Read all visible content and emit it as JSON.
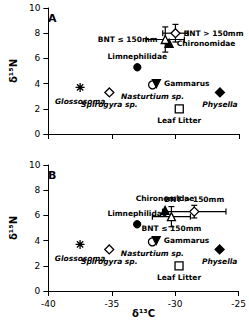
{
  "chart_data": [
    {
      "type": "scatter",
      "title": "A",
      "ylabel": "δ¹⁵N",
      "color": "#000000",
      "xlim": [
        -40,
        -25
      ],
      "xticks": [
        -40,
        -35,
        -30,
        -25
      ],
      "ylim": [
        0,
        10
      ],
      "yticks": [
        0,
        2,
        4,
        6,
        8,
        10
      ],
      "tick_labels": "y",
      "grid": false,
      "series": [
        {
          "name": "Glossosoma",
          "marker": "asterisk",
          "x": [
            -37.5
          ],
          "values": [
            3.7
          ]
        },
        {
          "name": "Spirogyra sp.",
          "marker": "diamond_open",
          "x": [
            -35.2
          ],
          "values": [
            3.3
          ]
        },
        {
          "name": "Limnephilidae",
          "marker": "circle",
          "x": [
            -33.0
          ],
          "values": [
            5.3
          ]
        },
        {
          "name": "Nasturtium sp.",
          "marker": "circle_open",
          "x": [
            -31.8
          ],
          "values": [
            3.9
          ]
        },
        {
          "name": "Gammarus",
          "marker": "triangle_down",
          "x": [
            -31.5
          ],
          "values": [
            4.0
          ]
        },
        {
          "name": "Leaf Litter",
          "marker": "square_open",
          "x": [
            -29.7
          ],
          "values": [
            2.0
          ]
        },
        {
          "name": "Physella",
          "marker": "diamond",
          "x": [
            -26.5
          ],
          "values": [
            3.3
          ]
        },
        {
          "name": "Chironomidae",
          "marker": "triangle",
          "x": [
            -30.5
          ],
          "values": [
            7.2
          ]
        },
        {
          "name": "BNT ≤ 150mm",
          "marker": "triangle_open",
          "x": [
            -30.8
          ],
          "values": [
            7.5
          ],
          "x_error": [
            1.5
          ],
          "y_error": [
            1.0
          ]
        },
        {
          "name": "BNT > 150mm",
          "marker": "diamond_open",
          "x": [
            -30.0
          ],
          "values": [
            8.0
          ],
          "x_error": [
            1.0
          ],
          "y_error": [
            0.7
          ]
        }
      ]
    },
    {
      "type": "scatter",
      "title": "B",
      "xlabel": "δ¹³C",
      "ylabel": "δ¹⁵N",
      "color": "#000000",
      "xlim": [
        -40,
        -25
      ],
      "xticks": [
        -40,
        -35,
        -30,
        -25
      ],
      "ylim": [
        0,
        10
      ],
      "yticks": [
        0,
        2,
        4,
        6,
        8,
        10
      ],
      "grid": false,
      "series": [
        {
          "name": "Glossosoma",
          "marker": "asterisk",
          "x": [
            -37.5
          ],
          "values": [
            3.7
          ]
        },
        {
          "name": "Spirogyra sp.",
          "marker": "diamond_open",
          "x": [
            -35.2
          ],
          "values": [
            3.3
          ]
        },
        {
          "name": "Limnephilidae",
          "marker": "circle",
          "x": [
            -33.0
          ],
          "values": [
            5.3
          ]
        },
        {
          "name": "Nasturtium sp.",
          "marker": "circle_open",
          "x": [
            -31.8
          ],
          "values": [
            3.9
          ]
        },
        {
          "name": "Gammarus",
          "marker": "triangle_down",
          "x": [
            -31.5
          ],
          "values": [
            4.0
          ]
        },
        {
          "name": "Leaf Litter",
          "marker": "square_open",
          "x": [
            -29.7
          ],
          "values": [
            2.0
          ]
        },
        {
          "name": "Physella",
          "marker": "diamond",
          "x": [
            -26.5
          ],
          "values": [
            3.3
          ]
        },
        {
          "name": "Chironomidae",
          "marker": "triangle",
          "x": [
            -30.8
          ],
          "values": [
            6.4
          ]
        },
        {
          "name": "BNT ≤ 150mm",
          "marker": "triangle_open",
          "x": [
            -30.3
          ],
          "values": [
            5.9
          ],
          "x_error": [
            1.5
          ],
          "y_error": [
            0.8
          ]
        },
        {
          "name": "BNT > 150mm",
          "marker": "diamond_open",
          "x": [
            -28.5
          ],
          "values": [
            6.3
          ],
          "x_error": [
            2.5
          ],
          "y_error": [
            0.5
          ]
        }
      ]
    }
  ]
}
